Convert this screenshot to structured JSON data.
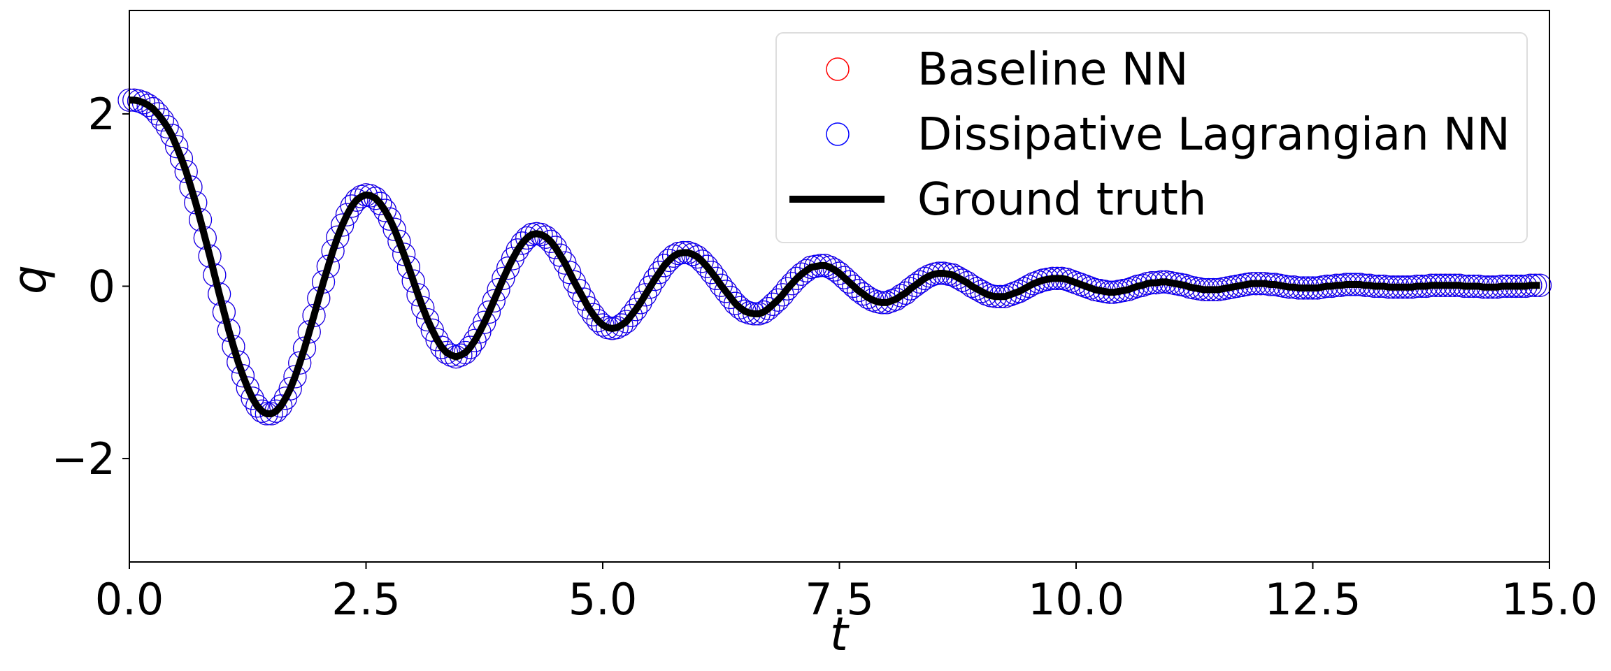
{
  "chart_data": {
    "type": "line",
    "xlabel": "t",
    "ylabel": "q",
    "xlim": [
      0,
      15
    ],
    "ylim": [
      -3.2,
      3.2
    ],
    "x_ticks": [
      0,
      2.5,
      5,
      7.5,
      10,
      12.5,
      15
    ],
    "x_tick_labels": [
      "0.0",
      "2.5",
      "5.0",
      "7.5",
      "10.0",
      "12.5",
      "15.0"
    ],
    "y_ticks": [
      -2,
      0,
      2
    ],
    "y_tick_labels": [
      "−2",
      "0",
      "2"
    ],
    "grid": false,
    "legend_position": "top-right",
    "x_step": 0.05,
    "series": [
      {
        "name": "Baseline NN",
        "style": "hollow-circle markers",
        "color": "#ff0000",
        "y": [
          2.16,
          2.16,
          2.15,
          2.13,
          2.1,
          2.06,
          2.0,
          1.93,
          1.85,
          1.75,
          1.62,
          1.48,
          1.33,
          1.15,
          0.97,
          0.77,
          0.56,
          0.35,
          0.13,
          -0.09,
          -0.3,
          -0.51,
          -0.7,
          -0.88,
          -1.04,
          -1.18,
          -1.3,
          -1.39,
          -1.45,
          -1.48,
          -1.48,
          -1.45,
          -1.39,
          -1.3,
          -1.19,
          -1.05,
          -0.89,
          -0.72,
          -0.53,
          -0.34,
          -0.14,
          0.05,
          0.23,
          0.41,
          0.57,
          0.71,
          0.83,
          0.93,
          1.0,
          1.04,
          1.06,
          1.05,
          1.02,
          0.96,
          0.88,
          0.78,
          0.66,
          0.52,
          0.37,
          0.22,
          0.06,
          -0.1,
          -0.25,
          -0.39,
          -0.51,
          -0.62,
          -0.71,
          -0.77,
          -0.8,
          -0.82,
          -0.8,
          -0.77,
          -0.71,
          -0.63,
          -0.53,
          -0.42,
          -0.3,
          -0.17,
          -0.04,
          0.09,
          0.21,
          0.32,
          0.42,
          0.5,
          0.56,
          0.6,
          0.61,
          0.6,
          0.57,
          0.52,
          0.45,
          0.36,
          0.27,
          0.16,
          0.05,
          -0.05,
          -0.15,
          -0.25,
          -0.33,
          -0.4,
          -0.45,
          -0.48,
          -0.49,
          -0.48,
          -0.45,
          -0.41,
          -0.34,
          -0.27,
          -0.19,
          -0.1,
          -0.01,
          0.08,
          0.16,
          0.24,
          0.3,
          0.35,
          0.38,
          0.39,
          0.39,
          0.37,
          0.34,
          0.29,
          0.23,
          0.16,
          0.09,
          0.01,
          -0.06,
          -0.13,
          -0.2,
          -0.25,
          -0.29,
          -0.31,
          -0.32,
          -0.32,
          -0.3,
          -0.26,
          -0.21,
          -0.16,
          -0.1,
          -0.03,
          0.03,
          0.09,
          0.14,
          0.18,
          0.22,
          0.23,
          0.24,
          0.24,
          0.22,
          0.19,
          0.15,
          0.1,
          0.05,
          0.0,
          -0.05,
          -0.09,
          -0.13,
          -0.16,
          -0.18,
          -0.19,
          -0.19,
          -0.17,
          -0.15,
          -0.11,
          -0.08,
          -0.03,
          0.01,
          0.05,
          0.09,
          0.12,
          0.14,
          0.15,
          0.15,
          0.14,
          0.13,
          0.1,
          0.07,
          0.04,
          0.0,
          -0.03,
          -0.06,
          -0.09,
          -0.11,
          -0.12,
          -0.12,
          -0.12,
          -0.1,
          -0.08,
          -0.06,
          -0.03,
          0.0,
          0.03,
          0.05,
          0.07,
          0.08,
          0.09,
          0.09,
          0.09,
          0.08,
          0.06,
          0.04,
          0.02,
          0.0,
          -0.02,
          -0.04,
          -0.05,
          -0.06,
          -0.07,
          -0.07,
          -0.06,
          -0.05,
          -0.04,
          -0.02,
          0.0,
          0.01,
          0.03,
          0.04,
          0.04,
          0.05,
          0.05,
          0.04,
          0.03,
          0.02,
          0.01,
          -0.01,
          -0.02,
          -0.03,
          -0.04,
          -0.04,
          -0.04,
          -0.04,
          -0.03,
          -0.02,
          -0.01,
          0.0,
          0.01,
          0.02,
          0.03,
          0.03,
          0.03,
          0.03,
          0.02,
          0.02,
          0.01,
          0.0,
          -0.01,
          -0.01,
          -0.02,
          -0.02,
          -0.02,
          -0.02,
          -0.02,
          -0.01,
          0.0,
          0.0,
          0.01,
          0.01,
          0.02,
          0.02,
          0.02,
          0.02,
          0.01,
          0.01,
          0.0,
          0.0,
          0.0,
          -0.01,
          -0.01,
          -0.01,
          -0.01,
          -0.01,
          -0.01,
          0.0,
          0.0,
          0.0,
          0.01,
          0.01,
          0.01,
          0.01,
          0.01,
          0.01,
          0.01,
          0.0,
          0.0,
          0.0,
          0.0,
          -0.01,
          -0.01,
          -0.01,
          -0.01,
          0.0,
          0.0,
          0.0,
          0.0,
          0.0,
          0.0,
          0.01,
          0.01,
          0.01
        ]
      },
      {
        "name": "Dissipative Lagrangian NN",
        "style": "hollow-circle markers",
        "color": "#0000ff",
        "y": [
          2.16,
          2.16,
          2.15,
          2.13,
          2.1,
          2.06,
          2.0,
          1.93,
          1.85,
          1.75,
          1.62,
          1.48,
          1.33,
          1.15,
          0.97,
          0.77,
          0.56,
          0.35,
          0.13,
          -0.09,
          -0.3,
          -0.51,
          -0.7,
          -0.88,
          -1.04,
          -1.18,
          -1.3,
          -1.39,
          -1.45,
          -1.48,
          -1.48,
          -1.45,
          -1.39,
          -1.3,
          -1.19,
          -1.05,
          -0.89,
          -0.72,
          -0.53,
          -0.34,
          -0.14,
          0.05,
          0.23,
          0.41,
          0.57,
          0.71,
          0.83,
          0.93,
          1.0,
          1.04,
          1.06,
          1.05,
          1.02,
          0.96,
          0.88,
          0.78,
          0.66,
          0.52,
          0.37,
          0.22,
          0.06,
          -0.1,
          -0.25,
          -0.39,
          -0.51,
          -0.62,
          -0.71,
          -0.77,
          -0.8,
          -0.82,
          -0.8,
          -0.77,
          -0.71,
          -0.63,
          -0.53,
          -0.42,
          -0.3,
          -0.17,
          -0.04,
          0.09,
          0.21,
          0.32,
          0.42,
          0.5,
          0.56,
          0.6,
          0.61,
          0.6,
          0.57,
          0.52,
          0.45,
          0.36,
          0.27,
          0.16,
          0.05,
          -0.05,
          -0.15,
          -0.25,
          -0.33,
          -0.4,
          -0.45,
          -0.48,
          -0.49,
          -0.48,
          -0.45,
          -0.41,
          -0.34,
          -0.27,
          -0.19,
          -0.1,
          -0.01,
          0.08,
          0.16,
          0.24,
          0.3,
          0.35,
          0.38,
          0.39,
          0.39,
          0.37,
          0.34,
          0.29,
          0.23,
          0.16,
          0.09,
          0.01,
          -0.06,
          -0.13,
          -0.2,
          -0.25,
          -0.29,
          -0.31,
          -0.32,
          -0.32,
          -0.3,
          -0.26,
          -0.21,
          -0.16,
          -0.1,
          -0.03,
          0.03,
          0.09,
          0.14,
          0.18,
          0.22,
          0.23,
          0.24,
          0.24,
          0.22,
          0.19,
          0.15,
          0.1,
          0.05,
          0.0,
          -0.05,
          -0.09,
          -0.13,
          -0.16,
          -0.18,
          -0.19,
          -0.19,
          -0.17,
          -0.15,
          -0.11,
          -0.08,
          -0.03,
          0.01,
          0.05,
          0.09,
          0.12,
          0.14,
          0.15,
          0.15,
          0.14,
          0.13,
          0.1,
          0.07,
          0.04,
          0.0,
          -0.03,
          -0.06,
          -0.09,
          -0.11,
          -0.12,
          -0.12,
          -0.12,
          -0.1,
          -0.08,
          -0.06,
          -0.03,
          0.0,
          0.03,
          0.05,
          0.07,
          0.08,
          0.09,
          0.09,
          0.09,
          0.08,
          0.06,
          0.04,
          0.02,
          0.0,
          -0.02,
          -0.04,
          -0.05,
          -0.06,
          -0.07,
          -0.07,
          -0.06,
          -0.05,
          -0.04,
          -0.02,
          0.0,
          0.01,
          0.03,
          0.04,
          0.04,
          0.05,
          0.05,
          0.04,
          0.03,
          0.02,
          0.01,
          -0.01,
          -0.02,
          -0.03,
          -0.04,
          -0.04,
          -0.04,
          -0.04,
          -0.03,
          -0.02,
          -0.01,
          0.0,
          0.01,
          0.02,
          0.03,
          0.03,
          0.03,
          0.03,
          0.02,
          0.02,
          0.01,
          0.0,
          -0.01,
          -0.01,
          -0.02,
          -0.02,
          -0.02,
          -0.02,
          -0.02,
          -0.01,
          0.0,
          0.0,
          0.01,
          0.01,
          0.02,
          0.02,
          0.02,
          0.02,
          0.01,
          0.01,
          0.0,
          0.0,
          0.0,
          -0.01,
          -0.01,
          -0.01,
          -0.01,
          -0.01,
          -0.01,
          0.0,
          0.0,
          0.0,
          0.01,
          0.01,
          0.01,
          0.01,
          0.01,
          0.01,
          0.01,
          0.0,
          0.0,
          0.0,
          0.0,
          -0.01,
          -0.01,
          -0.01,
          -0.01,
          0.0,
          0.0,
          0.0,
          0.0,
          0.0,
          0.0,
          0.01,
          0.01,
          0.01
        ]
      },
      {
        "name": "Ground truth",
        "style": "solid line",
        "color": "#000000",
        "y": [
          2.16,
          2.16,
          2.15,
          2.13,
          2.1,
          2.06,
          2.0,
          1.93,
          1.85,
          1.75,
          1.62,
          1.48,
          1.33,
          1.15,
          0.97,
          0.77,
          0.56,
          0.35,
          0.13,
          -0.09,
          -0.3,
          -0.51,
          -0.7,
          -0.88,
          -1.04,
          -1.18,
          -1.3,
          -1.39,
          -1.45,
          -1.48,
          -1.48,
          -1.45,
          -1.39,
          -1.3,
          -1.19,
          -1.05,
          -0.89,
          -0.72,
          -0.53,
          -0.34,
          -0.14,
          0.05,
          0.23,
          0.41,
          0.57,
          0.71,
          0.83,
          0.93,
          1.0,
          1.04,
          1.06,
          1.05,
          1.02,
          0.96,
          0.88,
          0.78,
          0.66,
          0.52,
          0.37,
          0.22,
          0.06,
          -0.1,
          -0.25,
          -0.39,
          -0.51,
          -0.62,
          -0.71,
          -0.77,
          -0.8,
          -0.82,
          -0.8,
          -0.77,
          -0.71,
          -0.63,
          -0.53,
          -0.42,
          -0.3,
          -0.17,
          -0.04,
          0.09,
          0.21,
          0.32,
          0.42,
          0.5,
          0.56,
          0.6,
          0.61,
          0.6,
          0.57,
          0.52,
          0.45,
          0.36,
          0.27,
          0.16,
          0.05,
          -0.05,
          -0.15,
          -0.25,
          -0.33,
          -0.4,
          -0.45,
          -0.48,
          -0.49,
          -0.48,
          -0.45,
          -0.41,
          -0.34,
          -0.27,
          -0.19,
          -0.1,
          -0.01,
          0.08,
          0.16,
          0.24,
          0.3,
          0.35,
          0.38,
          0.39,
          0.39,
          0.37,
          0.34,
          0.29,
          0.23,
          0.16,
          0.09,
          0.01,
          -0.06,
          -0.13,
          -0.2,
          -0.25,
          -0.29,
          -0.31,
          -0.32,
          -0.32,
          -0.3,
          -0.26,
          -0.21,
          -0.16,
          -0.1,
          -0.03,
          0.03,
          0.09,
          0.14,
          0.18,
          0.22,
          0.23,
          0.24,
          0.24,
          0.22,
          0.19,
          0.15,
          0.1,
          0.05,
          0.0,
          -0.05,
          -0.09,
          -0.13,
          -0.16,
          -0.18,
          -0.19,
          -0.19,
          -0.17,
          -0.15,
          -0.11,
          -0.08,
          -0.03,
          0.01,
          0.05,
          0.09,
          0.12,
          0.14,
          0.15,
          0.15,
          0.14,
          0.13,
          0.1,
          0.07,
          0.04,
          0.0,
          -0.03,
          -0.06,
          -0.09,
          -0.11,
          -0.12,
          -0.12,
          -0.12,
          -0.1,
          -0.08,
          -0.06,
          -0.03,
          0.0,
          0.03,
          0.05,
          0.07,
          0.08,
          0.09,
          0.09,
          0.09,
          0.08,
          0.06,
          0.04,
          0.02,
          0.0,
          -0.02,
          -0.04,
          -0.05,
          -0.06,
          -0.07,
          -0.07,
          -0.06,
          -0.05,
          -0.04,
          -0.02,
          0.0,
          0.01,
          0.03,
          0.04,
          0.04,
          0.05,
          0.05,
          0.04,
          0.03,
          0.02,
          0.01,
          -0.01,
          -0.02,
          -0.03,
          -0.04,
          -0.04,
          -0.04,
          -0.04,
          -0.03,
          -0.02,
          -0.01,
          0.0,
          0.01,
          0.02,
          0.03,
          0.03,
          0.03,
          0.03,
          0.02,
          0.02,
          0.01,
          0.0,
          -0.01,
          -0.01,
          -0.02,
          -0.02,
          -0.02,
          -0.02,
          -0.02,
          -0.01,
          0.0,
          0.0,
          0.01,
          0.01,
          0.02,
          0.02,
          0.02,
          0.02,
          0.01,
          0.01,
          0.0,
          0.0,
          0.0,
          -0.01,
          -0.01,
          -0.01,
          -0.01,
          -0.01,
          -0.01,
          0.0,
          0.0,
          0.0,
          0.01,
          0.01,
          0.01,
          0.01,
          0.01,
          0.01,
          0.01,
          0.0,
          0.0,
          0.0,
          0.0,
          -0.01,
          -0.01,
          -0.01,
          -0.01,
          0.0,
          0.0,
          0.0,
          0.0,
          0.0,
          0.0,
          0.01,
          0.01,
          0.01
        ]
      }
    ],
    "legend": [
      {
        "label": "Baseline NN",
        "marker": "circle",
        "color": "#ff0000"
      },
      {
        "label": "Dissipative Lagrangian NN",
        "marker": "circle",
        "color": "#0000ff"
      },
      {
        "label": "Ground truth",
        "marker": "line",
        "color": "#000000"
      }
    ]
  }
}
